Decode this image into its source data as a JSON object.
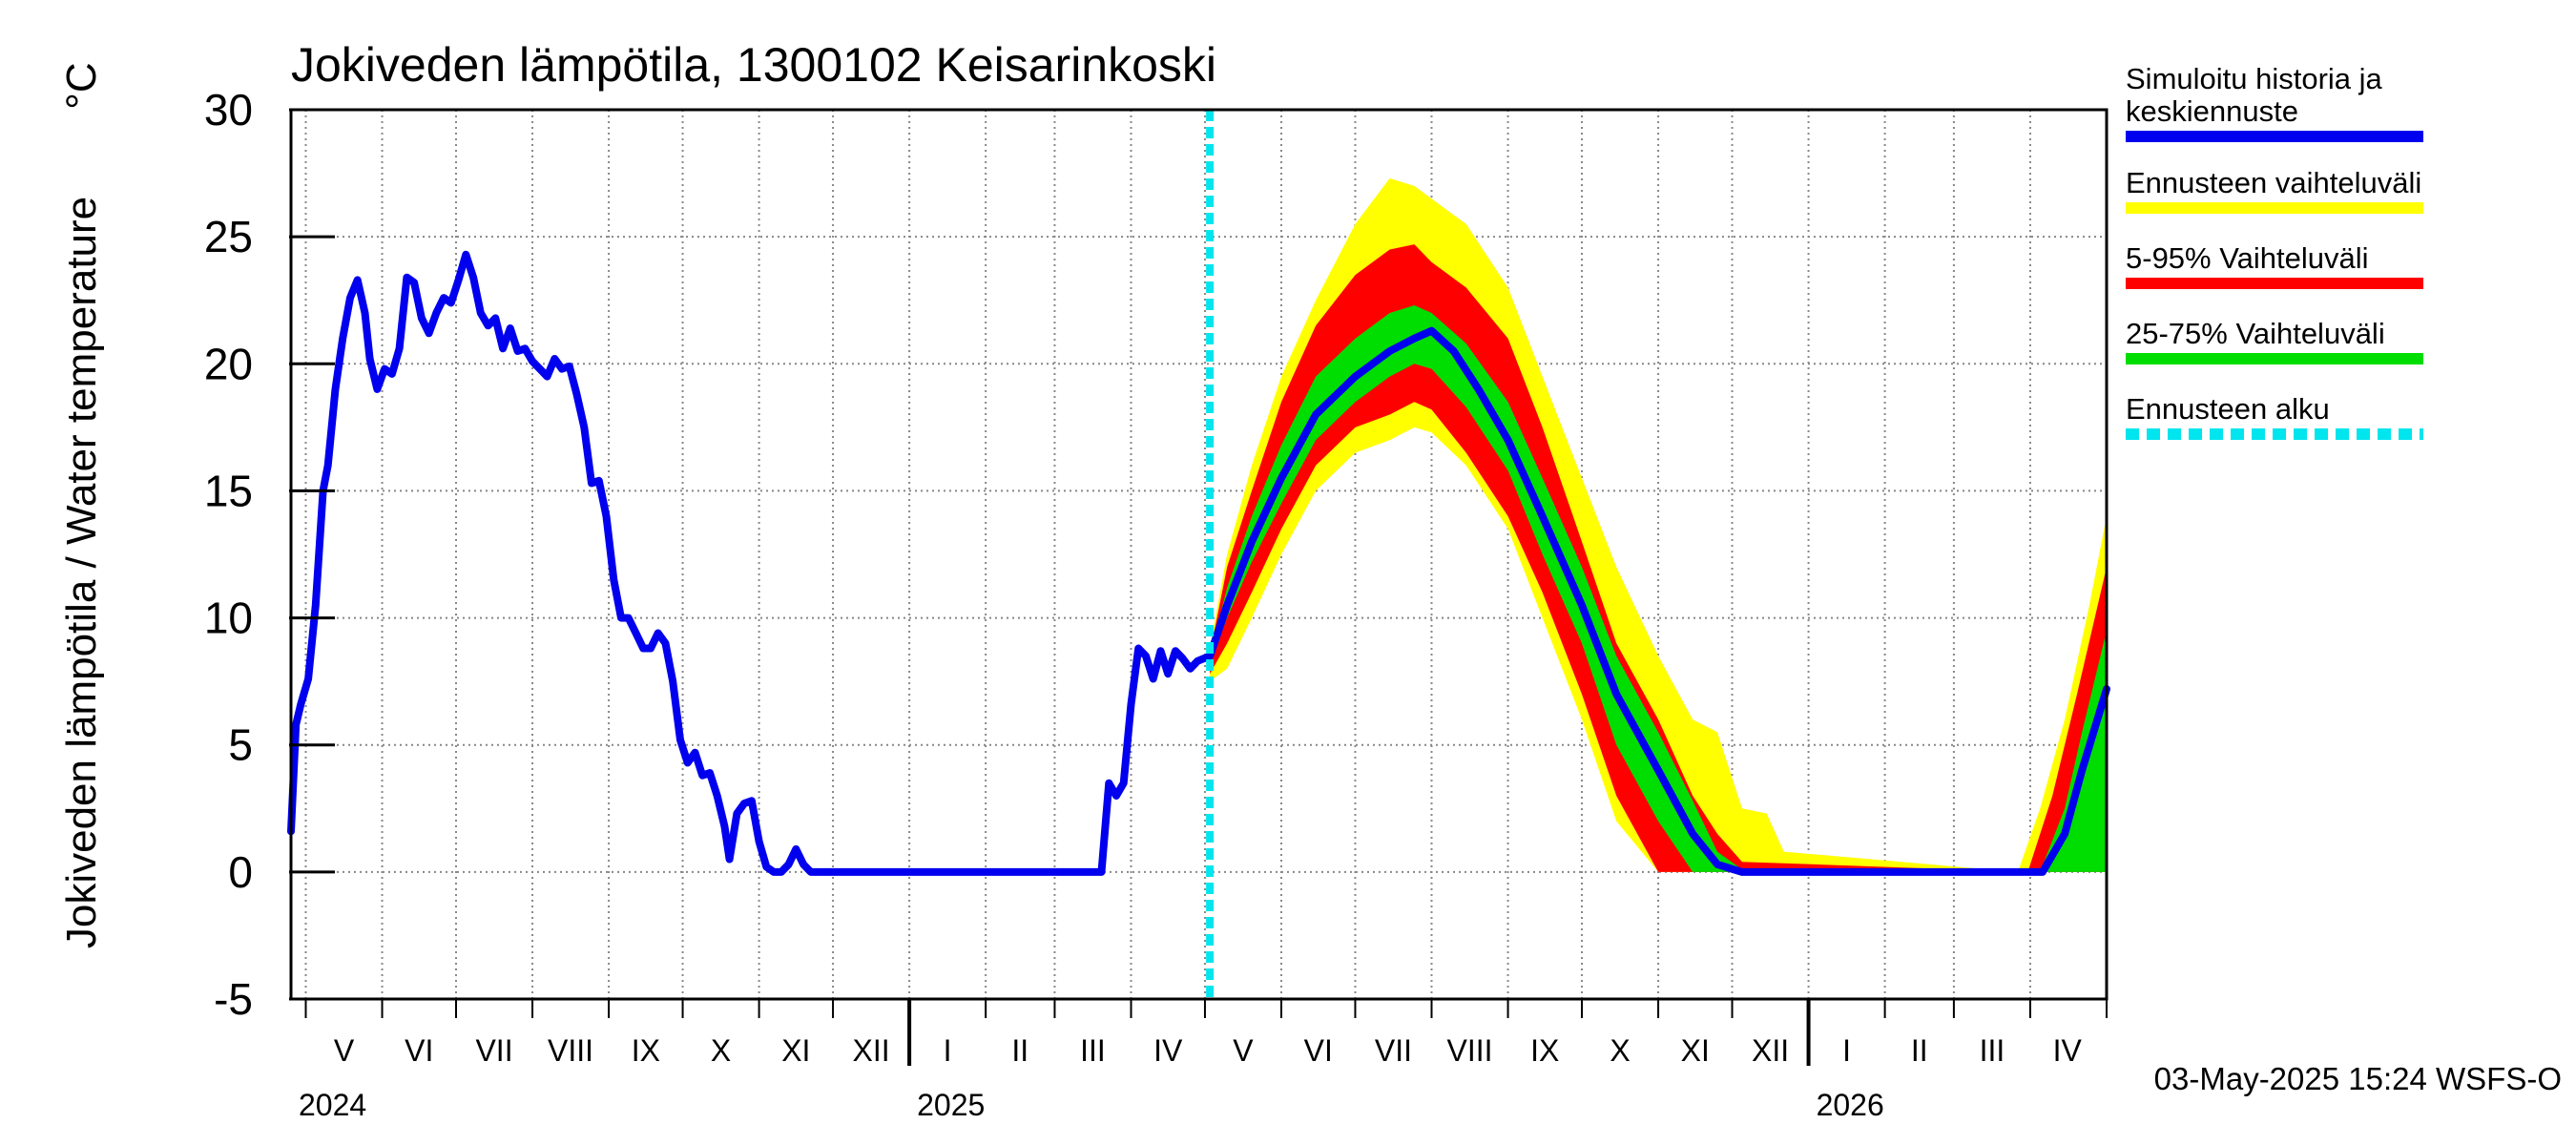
{
  "chart_data": {
    "type": "line",
    "title": "Jokiveden lämpötila, 1300102 Keisarinkoski",
    "ylabel": "Jokiveden lämpötila / Water temperature",
    "yunit": "°C",
    "ylim": [
      -5,
      30
    ],
    "yticks": [
      30,
      25,
      20,
      15,
      10,
      5,
      0,
      -5
    ],
    "xlim": [
      "2024-04-25",
      "2026-05-02"
    ],
    "grid": true,
    "month_labels": [
      {
        "label": "V",
        "start": "2024-05-01",
        "end": "2024-06-01"
      },
      {
        "label": "VI",
        "start": "2024-06-01",
        "end": "2024-07-01"
      },
      {
        "label": "VII",
        "start": "2024-07-01",
        "end": "2024-08-01"
      },
      {
        "label": "VIII",
        "start": "2024-08-01",
        "end": "2024-09-01"
      },
      {
        "label": "IX",
        "start": "2024-09-01",
        "end": "2024-10-01"
      },
      {
        "label": "X",
        "start": "2024-10-01",
        "end": "2024-11-01"
      },
      {
        "label": "XI",
        "start": "2024-11-01",
        "end": "2024-12-01"
      },
      {
        "label": "XII",
        "start": "2024-12-01",
        "end": "2025-01-01"
      },
      {
        "label": "I",
        "start": "2025-01-01",
        "end": "2025-02-01"
      },
      {
        "label": "II",
        "start": "2025-02-01",
        "end": "2025-03-01"
      },
      {
        "label": "III",
        "start": "2025-03-01",
        "end": "2025-04-01"
      },
      {
        "label": "IV",
        "start": "2025-04-01",
        "end": "2025-05-01"
      },
      {
        "label": "V",
        "start": "2025-05-01",
        "end": "2025-06-01"
      },
      {
        "label": "VI",
        "start": "2025-06-01",
        "end": "2025-07-01"
      },
      {
        "label": "VII",
        "start": "2025-07-01",
        "end": "2025-08-01"
      },
      {
        "label": "VIII",
        "start": "2025-08-01",
        "end": "2025-09-01"
      },
      {
        "label": "IX",
        "start": "2025-09-01",
        "end": "2025-10-01"
      },
      {
        "label": "X",
        "start": "2025-10-01",
        "end": "2025-11-01"
      },
      {
        "label": "XI",
        "start": "2025-11-01",
        "end": "2025-12-01"
      },
      {
        "label": "XII",
        "start": "2025-12-01",
        "end": "2026-01-01"
      },
      {
        "label": "I",
        "start": "2026-01-01",
        "end": "2026-02-01"
      },
      {
        "label": "II",
        "start": "2026-02-01",
        "end": "2026-03-01"
      },
      {
        "label": "III",
        "start": "2026-03-01",
        "end": "2026-04-01"
      },
      {
        "label": "IV",
        "start": "2026-04-01",
        "end": "2026-05-01"
      }
    ],
    "year_labels": [
      {
        "label": "2024",
        "date": "2024-04-25"
      },
      {
        "label": "2025",
        "date": "2025-01-01"
      },
      {
        "label": "2026",
        "date": "2026-01-01"
      }
    ],
    "forecast_start": "2025-05-03",
    "legend_position": "right",
    "legend": [
      {
        "key": "history",
        "lines": [
          "Simuloitu historia ja",
          "keskiennuste"
        ],
        "color": "#0000ee",
        "style": "solid"
      },
      {
        "key": "range",
        "lines": [
          "Ennusteen vaihteluväli"
        ],
        "color": "#ffff00",
        "style": "solid"
      },
      {
        "key": "p5_95",
        "lines": [
          "5-95% Vaihteluväli"
        ],
        "color": "#ff0000",
        "style": "solid"
      },
      {
        "key": "p25_75",
        "lines": [
          "25-75% Vaihteluväli"
        ],
        "color": "#00dd00",
        "style": "solid"
      },
      {
        "key": "fstart",
        "lines": [
          "Ennusteen alku"
        ],
        "color": "#00e5ee",
        "style": "dashed"
      }
    ],
    "series": [
      {
        "key": "history",
        "color": "#0000ee",
        "points": [
          [
            "2024-04-25",
            1.6
          ],
          [
            "2024-04-27",
            5.8
          ],
          [
            "2024-04-29",
            6.6
          ],
          [
            "2024-05-02",
            7.6
          ],
          [
            "2024-05-05",
            10.5
          ],
          [
            "2024-05-08",
            15.0
          ],
          [
            "2024-05-10",
            16.0
          ],
          [
            "2024-05-13",
            19.0
          ],
          [
            "2024-05-16",
            21.0
          ],
          [
            "2024-05-19",
            22.6
          ],
          [
            "2024-05-22",
            23.3
          ],
          [
            "2024-05-25",
            22.0
          ],
          [
            "2024-05-27",
            20.2
          ],
          [
            "2024-05-30",
            19.0
          ],
          [
            "2024-06-02",
            19.8
          ],
          [
            "2024-06-05",
            19.6
          ],
          [
            "2024-06-08",
            20.6
          ],
          [
            "2024-06-11",
            23.4
          ],
          [
            "2024-06-14",
            23.2
          ],
          [
            "2024-06-17",
            21.8
          ],
          [
            "2024-06-20",
            21.2
          ],
          [
            "2024-06-23",
            22.0
          ],
          [
            "2024-06-26",
            22.6
          ],
          [
            "2024-06-29",
            22.4
          ],
          [
            "2024-07-02",
            23.3
          ],
          [
            "2024-07-05",
            24.3
          ],
          [
            "2024-07-08",
            23.4
          ],
          [
            "2024-07-11",
            22.0
          ],
          [
            "2024-07-14",
            21.5
          ],
          [
            "2024-07-17",
            21.8
          ],
          [
            "2024-07-20",
            20.6
          ],
          [
            "2024-07-23",
            21.4
          ],
          [
            "2024-07-26",
            20.5
          ],
          [
            "2024-07-29",
            20.6
          ],
          [
            "2024-08-01",
            20.1
          ],
          [
            "2024-08-04",
            19.8
          ],
          [
            "2024-08-07",
            19.5
          ],
          [
            "2024-08-10",
            20.2
          ],
          [
            "2024-08-13",
            19.8
          ],
          [
            "2024-08-16",
            19.9
          ],
          [
            "2024-08-19",
            18.8
          ],
          [
            "2024-08-22",
            17.5
          ],
          [
            "2024-08-25",
            15.3
          ],
          [
            "2024-08-28",
            15.4
          ],
          [
            "2024-08-31",
            14.0
          ],
          [
            "2024-09-03",
            11.5
          ],
          [
            "2024-09-06",
            10.0
          ],
          [
            "2024-09-09",
            10.0
          ],
          [
            "2024-09-12",
            9.4
          ],
          [
            "2024-09-15",
            8.8
          ],
          [
            "2024-09-18",
            8.8
          ],
          [
            "2024-09-21",
            9.4
          ],
          [
            "2024-09-24",
            9.0
          ],
          [
            "2024-09-27",
            7.5
          ],
          [
            "2024-09-30",
            5.2
          ],
          [
            "2024-10-03",
            4.3
          ],
          [
            "2024-10-06",
            4.7
          ],
          [
            "2024-10-09",
            3.8
          ],
          [
            "2024-10-12",
            3.9
          ],
          [
            "2024-10-15",
            3.0
          ],
          [
            "2024-10-18",
            1.8
          ],
          [
            "2024-10-20",
            0.5
          ],
          [
            "2024-10-23",
            2.3
          ],
          [
            "2024-10-26",
            2.7
          ],
          [
            "2024-10-29",
            2.8
          ],
          [
            "2024-11-01",
            1.2
          ],
          [
            "2024-11-04",
            0.2
          ],
          [
            "2024-11-07",
            0.0
          ],
          [
            "2024-11-10",
            0.0
          ],
          [
            "2024-11-13",
            0.3
          ],
          [
            "2024-11-16",
            0.9
          ],
          [
            "2024-11-19",
            0.3
          ],
          [
            "2024-11-22",
            0.0
          ],
          [
            "2024-12-01",
            0.0
          ],
          [
            "2025-03-20",
            0.0
          ],
          [
            "2025-03-23",
            3.5
          ],
          [
            "2025-03-26",
            3.0
          ],
          [
            "2025-03-29",
            3.5
          ],
          [
            "2025-04-01",
            6.6
          ],
          [
            "2025-04-04",
            8.8
          ],
          [
            "2025-04-07",
            8.5
          ],
          [
            "2025-04-10",
            7.6
          ],
          [
            "2025-04-13",
            8.7
          ],
          [
            "2025-04-16",
            7.8
          ],
          [
            "2025-04-19",
            8.7
          ],
          [
            "2025-04-22",
            8.4
          ],
          [
            "2025-04-25",
            8.0
          ],
          [
            "2025-04-28",
            8.3
          ],
          [
            "2025-05-03",
            8.5
          ],
          [
            "2025-05-10",
            10.5
          ],
          [
            "2025-05-20",
            13.0
          ],
          [
            "2025-06-01",
            15.5
          ],
          [
            "2025-06-15",
            18.0
          ],
          [
            "2025-07-01",
            19.5
          ],
          [
            "2025-07-15",
            20.5
          ],
          [
            "2025-07-25",
            21.0
          ],
          [
            "2025-08-01",
            21.3
          ],
          [
            "2025-08-10",
            20.5
          ],
          [
            "2025-08-20",
            19.0
          ],
          [
            "2025-09-01",
            17.0
          ],
          [
            "2025-09-15",
            14.0
          ],
          [
            "2025-10-01",
            10.5
          ],
          [
            "2025-10-15",
            7.0
          ],
          [
            "2025-11-01",
            4.0
          ],
          [
            "2025-11-15",
            1.5
          ],
          [
            "2025-11-25",
            0.3
          ],
          [
            "2025-12-05",
            0.0
          ],
          [
            "2026-04-06",
            0.0
          ],
          [
            "2026-04-15",
            1.5
          ],
          [
            "2026-04-22",
            4.0
          ],
          [
            "2026-05-02",
            7.2
          ]
        ]
      }
    ],
    "bands": [
      {
        "key": "range",
        "color": "#ffff00",
        "points": [
          [
            "2025-05-03",
            7.5,
            8.8
          ],
          [
            "2025-05-10",
            8.0,
            12.5
          ],
          [
            "2025-05-20",
            10.0,
            16.0
          ],
          [
            "2025-06-01",
            12.5,
            19.5
          ],
          [
            "2025-06-15",
            15.0,
            22.5
          ],
          [
            "2025-07-01",
            16.5,
            25.5
          ],
          [
            "2025-07-15",
            17.0,
            27.3
          ],
          [
            "2025-07-25",
            17.5,
            27.0
          ],
          [
            "2025-08-01",
            17.3,
            26.5
          ],
          [
            "2025-08-15",
            16.0,
            25.5
          ],
          [
            "2025-09-01",
            13.5,
            23.0
          ],
          [
            "2025-09-15",
            10.0,
            19.5
          ],
          [
            "2025-10-01",
            6.0,
            15.5
          ],
          [
            "2025-10-15",
            2.0,
            12.0
          ],
          [
            "2025-11-01",
            0.0,
            8.5
          ],
          [
            "2025-11-15",
            0.0,
            6.0
          ],
          [
            "2025-11-25",
            0.0,
            5.5
          ],
          [
            "2025-12-05",
            0.0,
            2.5
          ],
          [
            "2025-12-15",
            0.0,
            2.3
          ],
          [
            "2025-12-22",
            0.0,
            0.8
          ],
          [
            "2026-03-27",
            0.0,
            0.0
          ],
          [
            "2026-04-05",
            0.0,
            2.5
          ],
          [
            "2026-04-15",
            0.0,
            6.0
          ],
          [
            "2026-04-25",
            0.0,
            10.5
          ],
          [
            "2026-05-02",
            0.0,
            14.0
          ]
        ]
      },
      {
        "key": "p5_95",
        "color": "#ff0000",
        "points": [
          [
            "2025-05-03",
            7.8,
            8.6
          ],
          [
            "2025-05-10",
            9.0,
            12.0
          ],
          [
            "2025-05-20",
            11.0,
            15.0
          ],
          [
            "2025-06-01",
            13.5,
            18.5
          ],
          [
            "2025-06-15",
            16.0,
            21.5
          ],
          [
            "2025-07-01",
            17.5,
            23.5
          ],
          [
            "2025-07-15",
            18.0,
            24.5
          ],
          [
            "2025-07-25",
            18.5,
            24.7
          ],
          [
            "2025-08-01",
            18.2,
            24.0
          ],
          [
            "2025-08-15",
            16.5,
            23.0
          ],
          [
            "2025-09-01",
            14.0,
            21.0
          ],
          [
            "2025-09-15",
            11.0,
            17.5
          ],
          [
            "2025-10-01",
            7.0,
            13.0
          ],
          [
            "2025-10-15",
            3.0,
            9.0
          ],
          [
            "2025-11-01",
            0.0,
            6.0
          ],
          [
            "2025-11-15",
            0.0,
            3.0
          ],
          [
            "2025-11-25",
            0.0,
            1.5
          ],
          [
            "2025-12-05",
            0.0,
            0.4
          ],
          [
            "2026-03-31",
            0.0,
            0.0
          ],
          [
            "2026-04-10",
            0.0,
            3.0
          ],
          [
            "2026-04-20",
            0.0,
            7.0
          ],
          [
            "2026-05-02",
            0.0,
            12.0
          ]
        ]
      },
      {
        "key": "p25_75",
        "color": "#00dd00",
        "points": [
          [
            "2025-05-03",
            8.2,
            8.5
          ],
          [
            "2025-05-10",
            10.0,
            11.2
          ],
          [
            "2025-05-20",
            12.2,
            14.0
          ],
          [
            "2025-06-01",
            14.5,
            16.8
          ],
          [
            "2025-06-15",
            17.0,
            19.5
          ],
          [
            "2025-07-01",
            18.5,
            21.0
          ],
          [
            "2025-07-15",
            19.5,
            22.0
          ],
          [
            "2025-07-25",
            20.0,
            22.3
          ],
          [
            "2025-08-01",
            19.8,
            22.0
          ],
          [
            "2025-08-15",
            18.3,
            20.8
          ],
          [
            "2025-09-01",
            15.8,
            18.5
          ],
          [
            "2025-09-15",
            12.5,
            15.5
          ],
          [
            "2025-10-01",
            9.0,
            12.0
          ],
          [
            "2025-10-15",
            5.0,
            8.5
          ],
          [
            "2025-11-01",
            2.0,
            5.5
          ],
          [
            "2025-11-15",
            0.0,
            2.8
          ],
          [
            "2025-11-25",
            0.0,
            0.8
          ],
          [
            "2025-12-05",
            0.0,
            0.1
          ],
          [
            "2026-04-05",
            0.0,
            0.0
          ],
          [
            "2026-04-15",
            0.0,
            2.5
          ],
          [
            "2026-04-22",
            0.0,
            5.5
          ],
          [
            "2026-05-02",
            0.0,
            9.5
          ]
        ]
      }
    ]
  },
  "footer": {
    "timestamp": "03-May-2025 15:24 WSFS-O"
  }
}
